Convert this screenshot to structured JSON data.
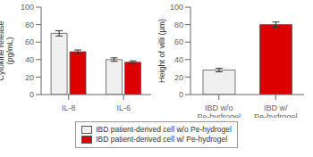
{
  "chart_data": [
    {
      "type": "bar",
      "categories": [
        "IL-8",
        "IL-6"
      ],
      "series": [
        {
          "name": "IBD patient-derived cell w/o Pe-hydrogel",
          "color": "#f0f0f0",
          "values": [
            70,
            40
          ],
          "errors": [
            3,
            2
          ]
        },
        {
          "name": "IBD patient-derived cell w/ Pe-hydrogel",
          "color": "#dd0000",
          "values": [
            49,
            37
          ],
          "errors": [
            2,
            1.5
          ]
        }
      ],
      "ylabel": "Cytokine release\n(pg/mL)",
      "ylim": [
        0,
        100
      ],
      "yticks": [
        0,
        20,
        40,
        60,
        80,
        100
      ],
      "grid": false,
      "legend": "bottom"
    },
    {
      "type": "bar",
      "categories": [
        "IBD w/o\nPe-hydrogel",
        "IBD w/\nPe-hydrogel"
      ],
      "values": [
        28,
        80
      ],
      "errors": [
        2,
        3
      ],
      "colors": [
        "#f0f0f0",
        "#dd0000"
      ],
      "ylabel": "Height of villi (μm)",
      "ylim": [
        0,
        100
      ],
      "yticks": [
        0,
        20,
        40,
        60,
        80,
        100
      ],
      "grid": false
    }
  ]
}
